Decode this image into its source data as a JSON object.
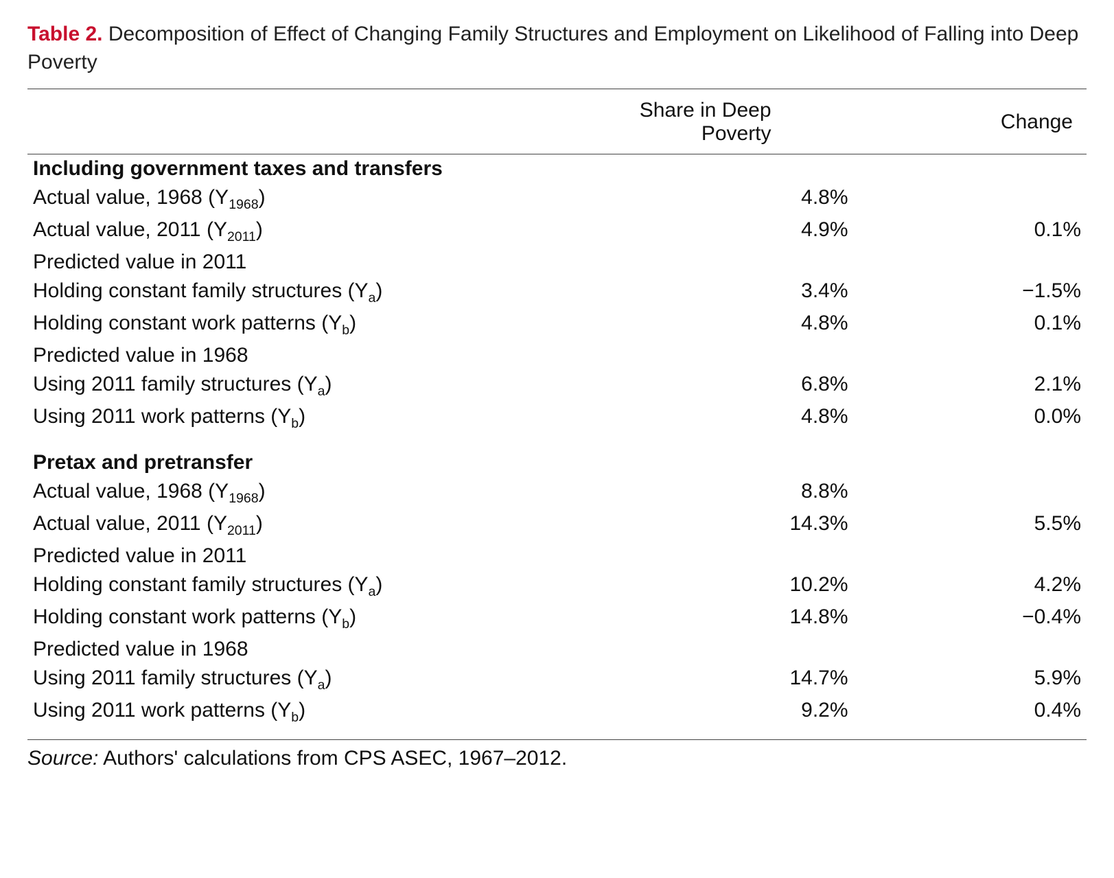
{
  "colors": {
    "accent": "#c8102e",
    "text": "#111111",
    "rule": "#444444",
    "background": "#ffffff"
  },
  "typography": {
    "base_fontsize_pt": 22,
    "title_fontsize_pt": 22,
    "font_family": "Helvetica Neue, Helvetica, Arial, sans-serif"
  },
  "title": {
    "label": "Table 2.",
    "text": "Decomposition of Effect of Changing Family Structures and Employment on Likelihood of Falling into Deep Poverty"
  },
  "columns": {
    "share": "Share in Deep Poverty",
    "change": "Change"
  },
  "sections": [
    {
      "heading": "Including government taxes and transfers",
      "groups": [
        {
          "subhead": null,
          "rows": [
            {
              "label": "Actual value, 1968 (Y",
              "sub": "1968",
              "label_tail": ")",
              "share": "4.8%",
              "change": ""
            },
            {
              "label": "Actual value, 2011 (Y",
              "sub": "2011",
              "label_tail": ")",
              "share": "4.9%",
              "change": "0.1%"
            }
          ]
        },
        {
          "subhead": "Predicted value in 2011",
          "rows": [
            {
              "label": "Holding constant family structures (Y",
              "sub": "a",
              "label_tail": ")",
              "share": "3.4%",
              "change": "−1.5%"
            },
            {
              "label": "Holding constant work patterns (Y",
              "sub": "b",
              "label_tail": ")",
              "share": "4.8%",
              "change": "0.1%"
            }
          ]
        },
        {
          "subhead": "Predicted value in 1968",
          "rows": [
            {
              "label": "Using 2011 family structures (Y",
              "sub": "a",
              "label_tail": ")",
              "share": "6.8%",
              "change": "2.1%"
            },
            {
              "label": "Using 2011 work patterns (Y",
              "sub": "b",
              "label_tail": ")",
              "share": "4.8%",
              "change": "0.0%"
            }
          ]
        }
      ]
    },
    {
      "heading": "Pretax and pretransfer",
      "groups": [
        {
          "subhead": null,
          "rows": [
            {
              "label": "Actual value, 1968 (Y",
              "sub": "1968",
              "label_tail": ")",
              "share": "8.8%",
              "change": ""
            },
            {
              "label": "Actual value, 2011 (Y",
              "sub": "2011",
              "label_tail": ")",
              "share": "14.3%",
              "change": "5.5%"
            }
          ]
        },
        {
          "subhead": "Predicted value in 2011",
          "rows": [
            {
              "label": "Holding constant family structures (Y",
              "sub": "a",
              "label_tail": ")",
              "share": "10.2%",
              "change": "4.2%"
            },
            {
              "label": "Holding constant work patterns (Y",
              "sub": "b",
              "label_tail": ")",
              "share": "14.8%",
              "change": "−0.4%"
            }
          ]
        },
        {
          "subhead": "Predicted value in 1968",
          "rows": [
            {
              "label": "Using 2011 family structures (Y",
              "sub": "a",
              "label_tail": ")",
              "share": "14.7%",
              "change": "5.9%"
            },
            {
              "label": "Using 2011 work patterns (Y",
              "sub": "b",
              "label_tail": ")",
              "share": "9.2%",
              "change": "0.4%"
            }
          ]
        }
      ]
    }
  ],
  "source": {
    "label": "Source:",
    "text": "Authors' calculations from CPS ASEC, 1967–2012."
  }
}
